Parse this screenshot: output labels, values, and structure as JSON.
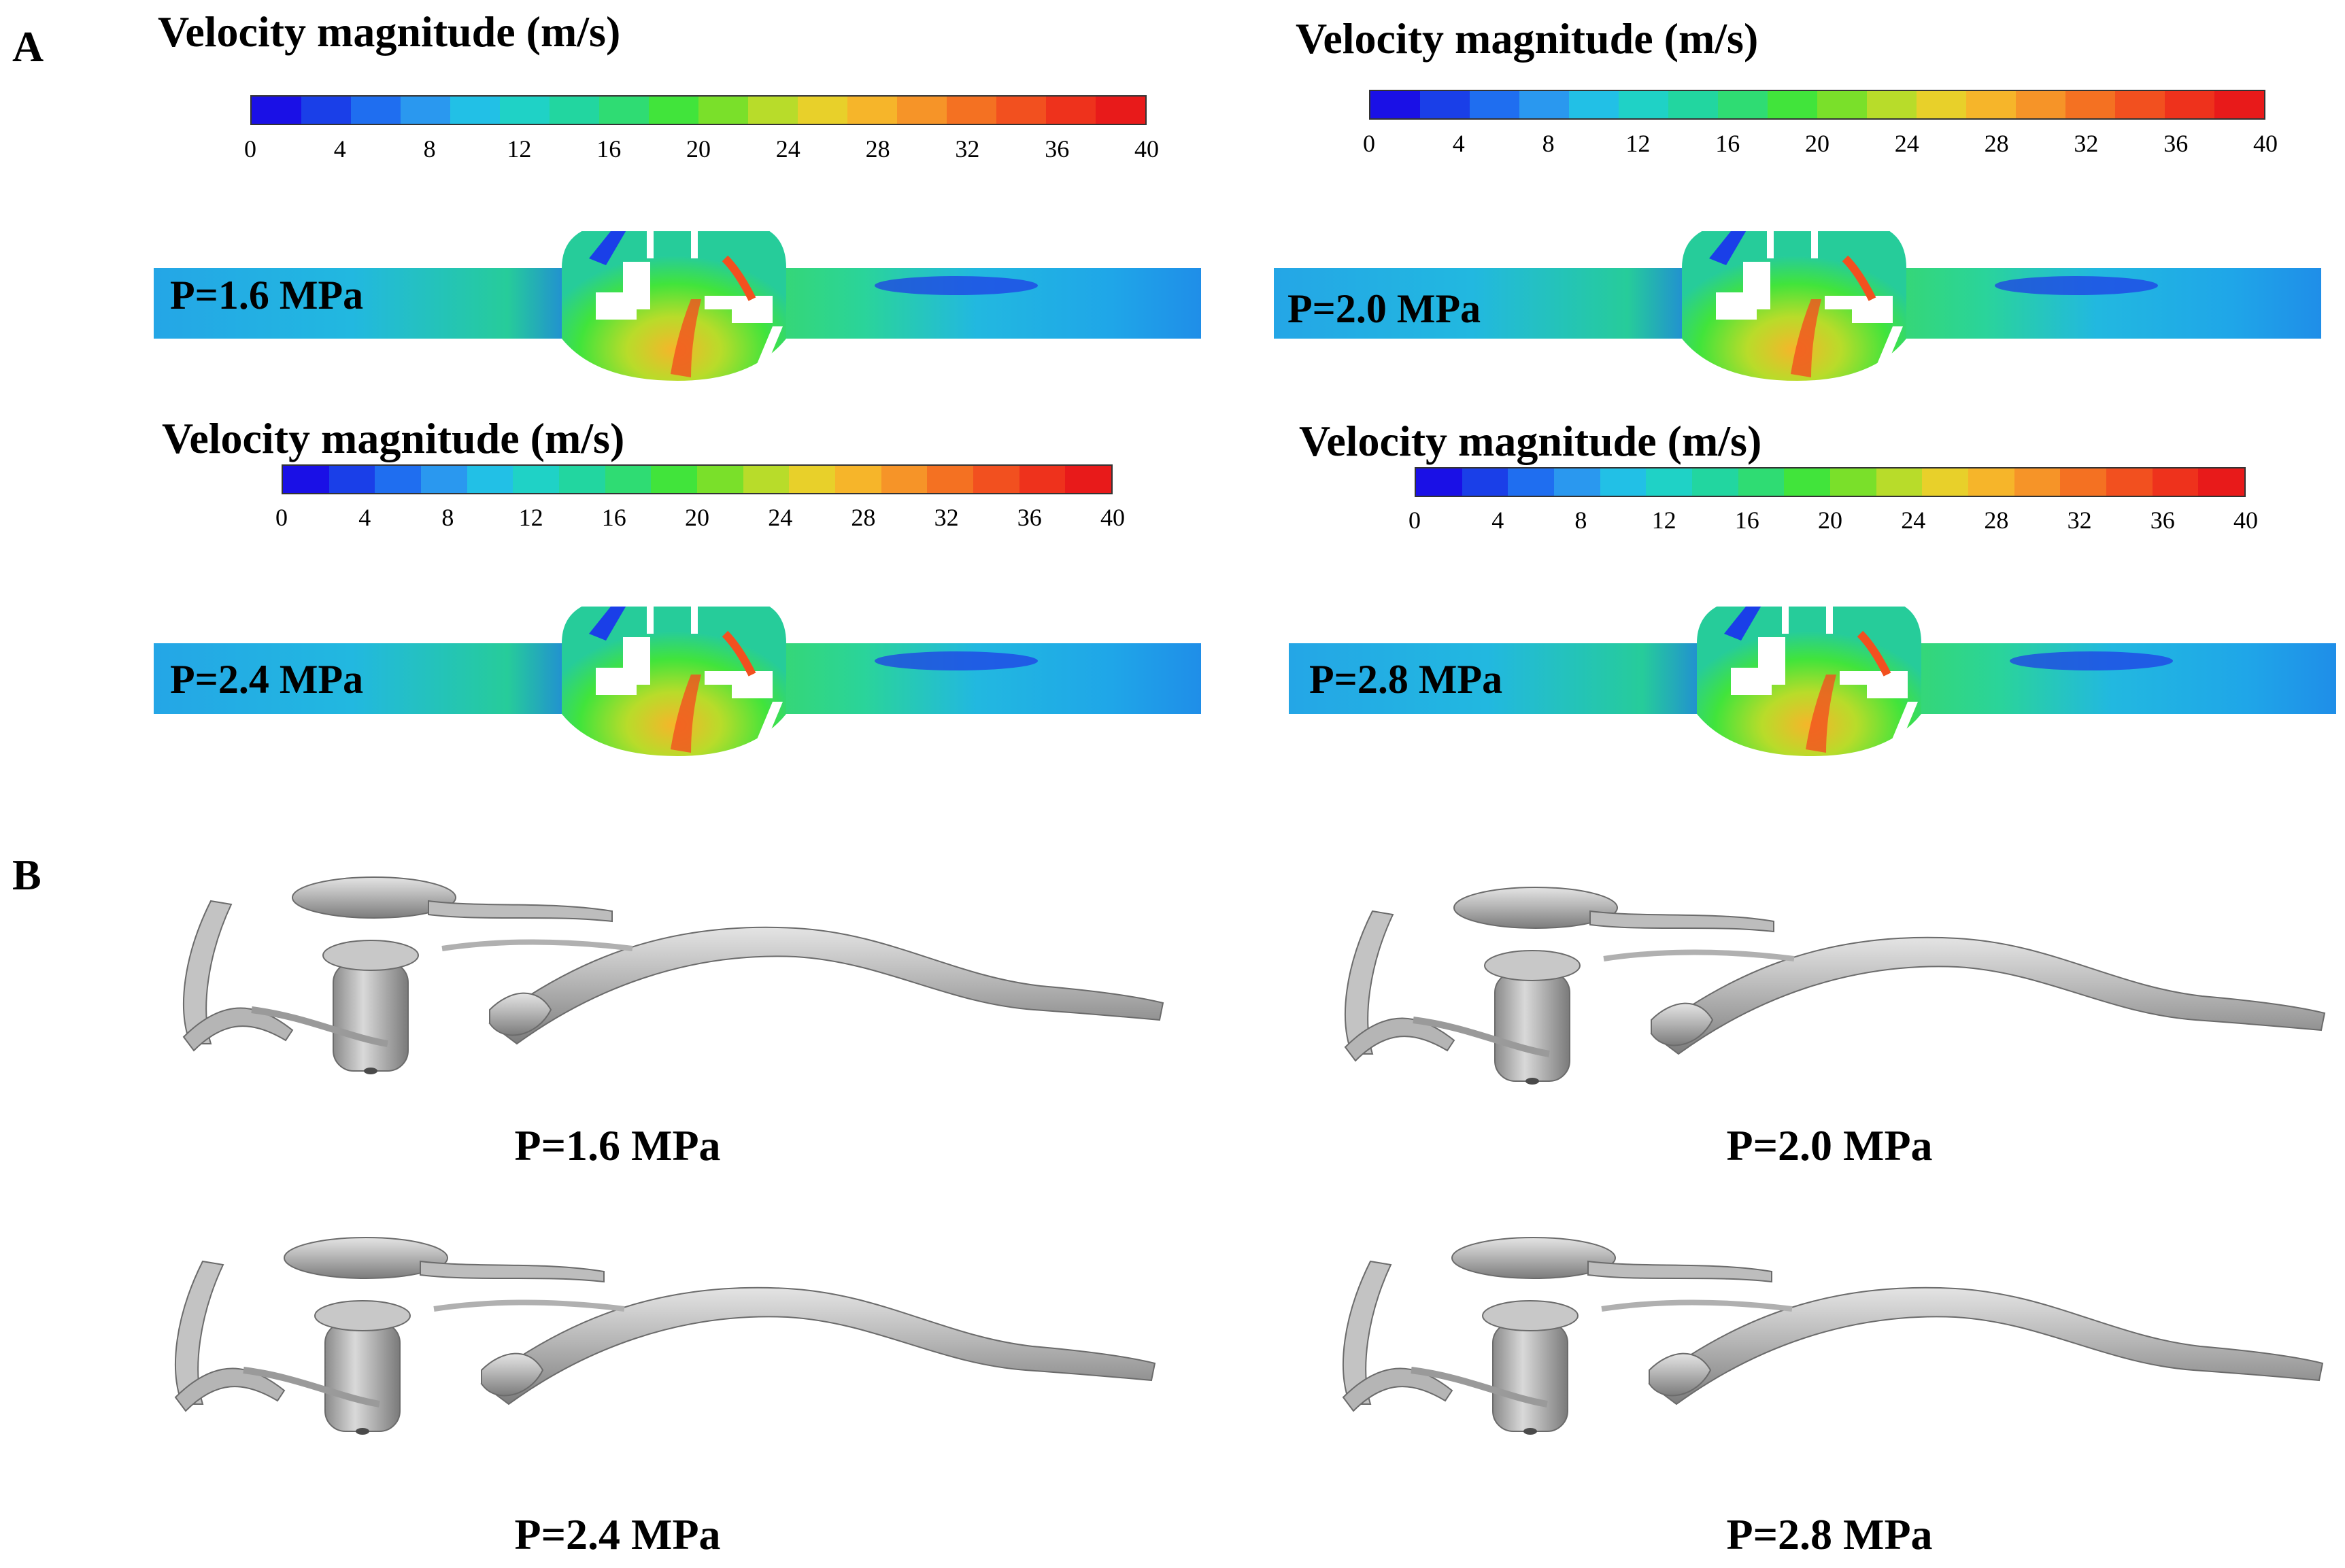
{
  "panel_a_label": "A",
  "panel_b_label": "B",
  "colorbar": {
    "title": "Velocity magnitude (m/s)",
    "ticks": [
      "0",
      "4",
      "8",
      "12",
      "16",
      "20",
      "24",
      "28",
      "32",
      "36",
      "40"
    ],
    "colors": [
      "#1a10e6",
      "#1a3fe8",
      "#1f6ef0",
      "#2a98ef",
      "#22c0e6",
      "#1fd2c6",
      "#22d6a0",
      "#2fdc73",
      "#41e43b",
      "#7ae02a",
      "#b8dc2a",
      "#e8d02a",
      "#f6b52a",
      "#f69428",
      "#f47122",
      "#f2501f",
      "#ee321c",
      "#e81a1a"
    ]
  },
  "panel_a": [
    {
      "label": "P=1.6 MPa"
    },
    {
      "label": "P=2.0 MPa"
    },
    {
      "label": "P=2.4 MPa"
    },
    {
      "label": "P=2.8 MPa"
    }
  ],
  "panel_b": [
    {
      "caption": "P=1.6 MPa"
    },
    {
      "caption": "P=2.0 MPa"
    },
    {
      "caption": "P=2.4 MPa"
    },
    {
      "caption": "P=2.8 MPa"
    }
  ]
}
